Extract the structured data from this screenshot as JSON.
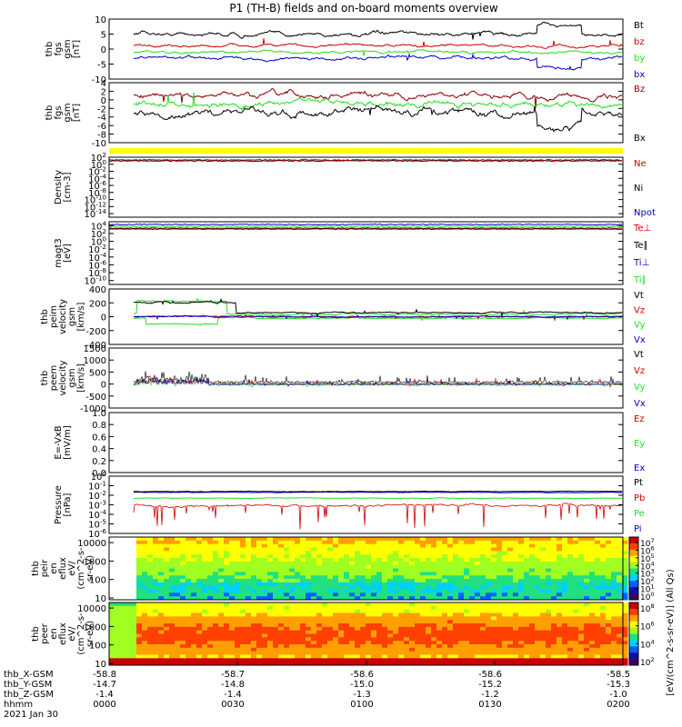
{
  "title": "P1 (TH-B) fields and on-board moments overview",
  "colors": {
    "black": "#000000",
    "red": "#cc0000",
    "green": "#22dd22",
    "blue": "#0000cc",
    "yellow": "#ffff00",
    "darkred": "#880000"
  },
  "chart_data": [
    {
      "id": "fgs_gsm",
      "type": "line",
      "ylabel": [
        "thb",
        "fgs",
        "gsm",
        "[nT]"
      ],
      "yticks": [
        10,
        5,
        0,
        -5,
        -10
      ],
      "ylim": [
        -10,
        10
      ],
      "legend": [
        {
          "name": "Bt",
          "color": "black"
        },
        {
          "name": "bz",
          "color": "red"
        },
        {
          "name": "by",
          "color": "green"
        },
        {
          "name": "bx",
          "color": "blue"
        }
      ],
      "series_levels": {
        "Bt": 5,
        "bz": 1,
        "by": -1,
        "bx": -3
      }
    },
    {
      "id": "fgs_angle",
      "type": "line",
      "ylabel": [
        "thb",
        "fgs",
        "gsm",
        "[nT]"
      ],
      "yticks": [
        4,
        2,
        0,
        -2,
        -4,
        -6,
        -8,
        -10
      ],
      "ylim": [
        -10,
        4
      ],
      "legend": [
        {
          "name": "Bz",
          "color": "darkred"
        },
        {
          "name": "Bx",
          "color": "black"
        }
      ],
      "series_levels": {
        "Bz": 1,
        "By": -1,
        "Bx": -3
      }
    },
    {
      "id": "density",
      "type": "line",
      "scale": "log",
      "ylabel": [
        "Density",
        "[cm-3]"
      ],
      "yticks": [
        "10^2",
        "10^0",
        "10^-2",
        "10^-4",
        "10^-6",
        "10^-8",
        "10^-10",
        "10^-12",
        "10^-14"
      ],
      "ylim": [
        "10^-15",
        "10^2"
      ],
      "legend": [
        {
          "name": "Ne",
          "color": "red"
        },
        {
          "name": "Ni",
          "color": "black"
        },
        {
          "name": "Npot",
          "color": "blue"
        }
      ]
    },
    {
      "id": "temperature",
      "type": "line",
      "scale": "log",
      "ylabel": [
        "magt3",
        "[eV]"
      ],
      "yticks": [
        "10^4",
        "10^2",
        "10^0",
        "10^-2",
        "10^-4",
        "10^-6",
        "10^-8",
        "10^-10"
      ],
      "ylim": [
        "10^-11",
        "10^5"
      ],
      "legend": [
        {
          "name": "Te⊥",
          "color": "red"
        },
        {
          "name": "Te∥",
          "color": "black"
        },
        {
          "name": "Ti⊥",
          "color": "blue"
        },
        {
          "name": "Ti∥",
          "color": "green"
        }
      ]
    },
    {
      "id": "peim_velocity",
      "type": "line",
      "ylabel": [
        "thb",
        "peim",
        "velocity",
        "gsm",
        "[km/s]"
      ],
      "yticks": [
        400,
        200,
        0,
        -200,
        -400
      ],
      "ylim": [
        -400,
        400
      ],
      "legend": [
        {
          "name": "Vt",
          "color": "black"
        },
        {
          "name": "Vz",
          "color": "red"
        },
        {
          "name": "Vy",
          "color": "green"
        },
        {
          "name": "Vx",
          "color": "blue"
        }
      ]
    },
    {
      "id": "peem_velocity",
      "type": "line",
      "ylabel": [
        "thb",
        "peem",
        "velocity",
        "gsm",
        "[km/s]"
      ],
      "yticks": [
        1500,
        1000,
        500,
        0,
        -500,
        -1000
      ],
      "ylim": [
        -1000,
        1500
      ],
      "legend": [
        {
          "name": "Vt",
          "color": "black"
        },
        {
          "name": "Vz",
          "color": "red"
        },
        {
          "name": "Vy",
          "color": "green"
        },
        {
          "name": "Vx",
          "color": "blue"
        }
      ]
    },
    {
      "id": "efield",
      "type": "line",
      "ylabel": [
        "E=-VxB",
        "[mV/m]"
      ],
      "yticks": [
        1.0,
        0.8,
        0.6,
        0.4,
        0.2,
        0.0
      ],
      "ylim": [
        0,
        1
      ],
      "legend": [
        {
          "name": "Ez",
          "color": "red"
        },
        {
          "name": "Ey",
          "color": "green"
        },
        {
          "name": "Ex",
          "color": "blue"
        }
      ]
    },
    {
      "id": "pressure",
      "type": "line",
      "scale": "log",
      "ylabel": [
        "Pressure",
        "[nPa]"
      ],
      "yticks": [
        "10^0",
        "10^-1",
        "10^-2",
        "10^-3",
        "10^-4",
        "10^-5",
        "10^-6"
      ],
      "ylim": [
        "10^-6",
        "10^0"
      ],
      "legend": [
        {
          "name": "Pt",
          "color": "black"
        },
        {
          "name": "Pb",
          "color": "red"
        },
        {
          "name": "Pe",
          "color": "green"
        },
        {
          "name": "Pi",
          "color": "blue"
        }
      ]
    },
    {
      "id": "peir_spec",
      "type": "heatmap",
      "scale": "log",
      "ylabel": [
        "thb",
        "peir",
        "en",
        "eflux",
        "eV/",
        "(cm^2-s-",
        "sr-eV)"
      ],
      "yticks": [
        "10000",
        "1000",
        "100",
        "10"
      ]
    },
    {
      "id": "peer_spec",
      "type": "heatmap",
      "scale": "log",
      "ylabel": [
        "thb",
        "peer",
        "en",
        "eflux",
        "eV/",
        "(cm^2-s-",
        "sr-eV)"
      ],
      "yticks": [
        "10000",
        "1000",
        "100",
        "10"
      ]
    }
  ],
  "colorbar1": {
    "ticks": [
      "10^7",
      "10^6",
      "10^5",
      "10^4",
      "10^3",
      "10^2",
      "10^1",
      "10^0"
    ],
    "label": "[eV/(cm^2-s-sr-eV)] (All Qs)"
  },
  "colorbar2": {
    "ticks": [
      "10^8",
      "10^6",
      "10^4",
      "10^2"
    ]
  },
  "xaxis": {
    "rows": [
      {
        "label": "thb_X-GSM",
        "values": [
          "-58.8",
          "-58.7",
          "-58.6",
          "-58.6",
          "-58.5"
        ]
      },
      {
        "label": "thb_Y-GSM",
        "values": [
          "-14.7",
          "-14.8",
          "-15.0",
          "-15.2",
          "-15.3"
        ]
      },
      {
        "label": "thb_Z-GSM",
        "values": [
          "-1.4",
          "-1.4",
          "-1.3",
          "-1.2",
          "-1.0"
        ]
      },
      {
        "label": "hhmm",
        "values": [
          "0000",
          "0030",
          "0100",
          "0130",
          "0200"
        ]
      }
    ],
    "date": "2021 Jan 30",
    "data_start": "0013"
  }
}
